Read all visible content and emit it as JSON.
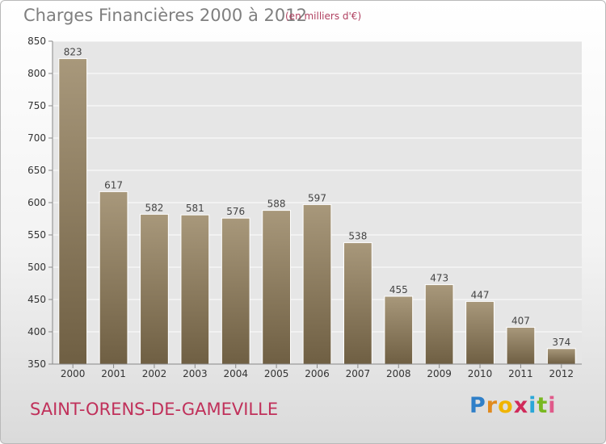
{
  "header": {
    "title": "Charges Financières 2000 à 2012",
    "unit": "(en milliers d'€)"
  },
  "footer": {
    "town": "SAINT-ORENS-DE-GAMEVILLE",
    "brand_letters": [
      "P",
      "r",
      "o",
      "x",
      "i",
      "t",
      "i"
    ],
    "brand_colors": [
      "#2f7fc8",
      "#e08a1e",
      "#f0b400",
      "#d02a5a",
      "#2aa7d8",
      "#78b820",
      "#e05a8a"
    ]
  },
  "chart_data": {
    "type": "bar",
    "title": "Charges Financières 2000 à 2012",
    "subtitle": "(en milliers d'€)",
    "categories": [
      "2000",
      "2001",
      "2002",
      "2003",
      "2004",
      "2005",
      "2006",
      "2007",
      "2008",
      "2009",
      "2010",
      "2011",
      "2012"
    ],
    "values": [
      823,
      617,
      582,
      581,
      576,
      588,
      597,
      538,
      455,
      473,
      447,
      407,
      374
    ],
    "ylim": [
      350,
      850
    ],
    "yticks": [
      350,
      400,
      450,
      500,
      550,
      600,
      650,
      700,
      750,
      800,
      850
    ],
    "grid": true,
    "bar_color_top": "#a8987b",
    "bar_color_bottom": "#6f5f43"
  }
}
